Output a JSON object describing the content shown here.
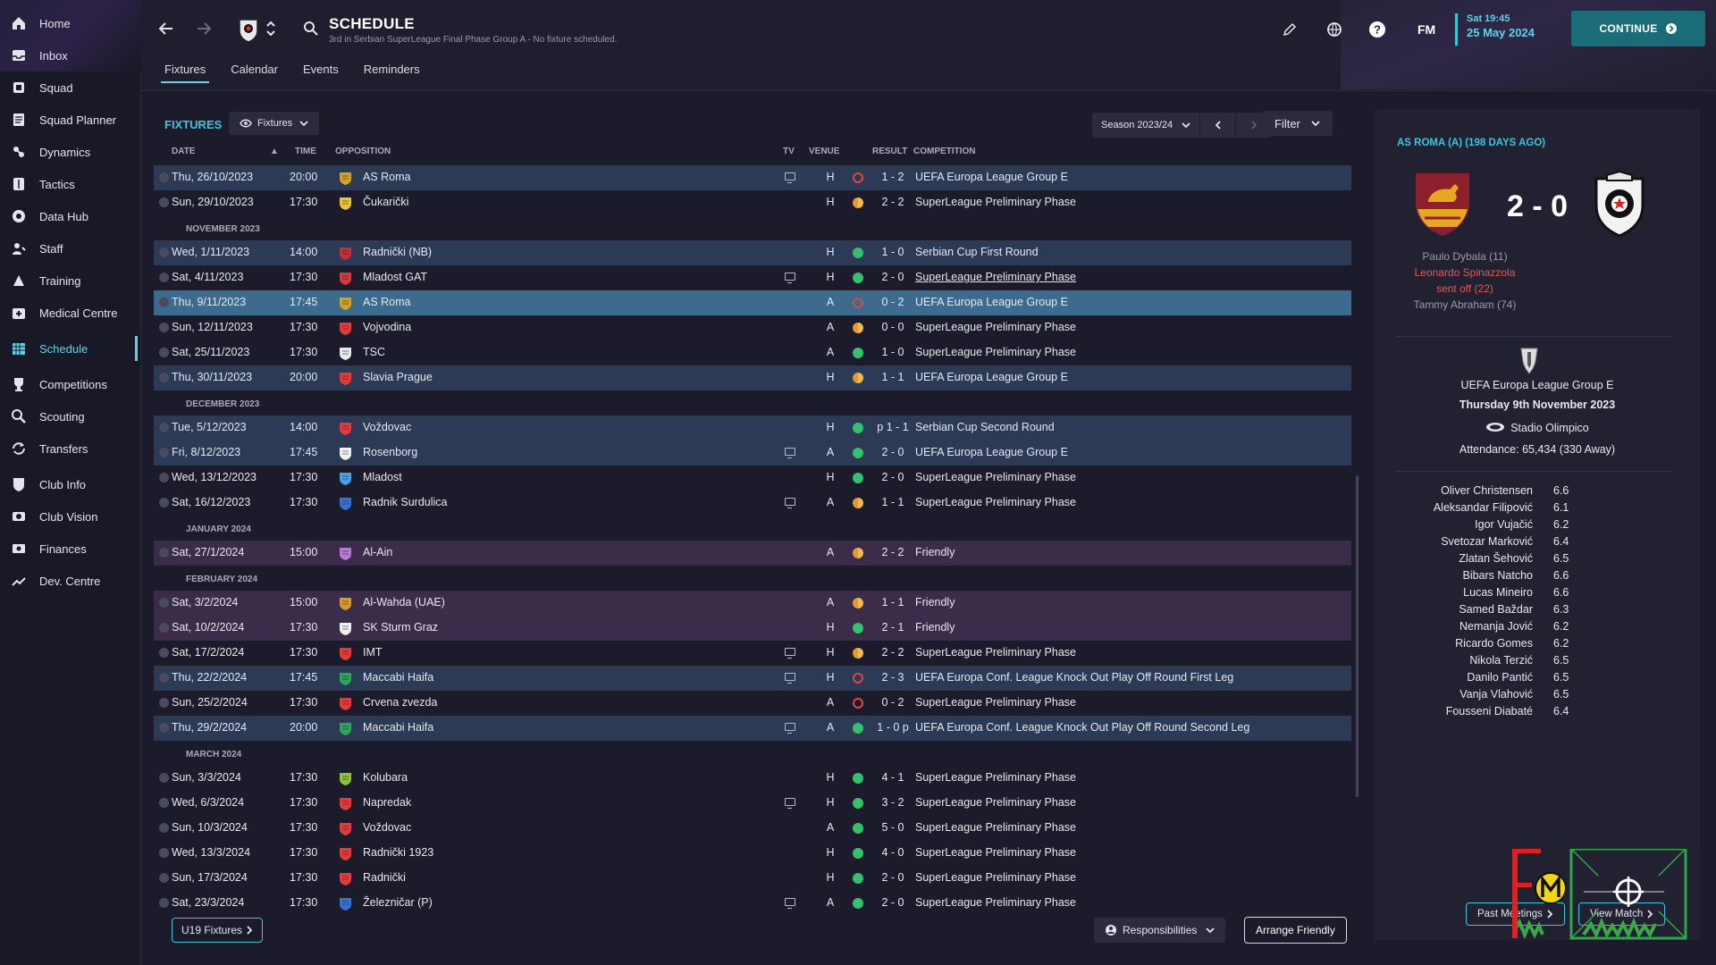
{
  "sidebar": {
    "items": [
      {
        "label": "Home",
        "icon": "home-icon"
      },
      {
        "label": "Inbox",
        "icon": "inbox-icon"
      },
      {
        "label": "Squad",
        "icon": "squad-icon"
      },
      {
        "label": "Squad Planner",
        "icon": "planner-icon"
      },
      {
        "label": "Dynamics",
        "icon": "dynamics-icon"
      },
      {
        "label": "Tactics",
        "icon": "tactics-icon"
      },
      {
        "label": "Data Hub",
        "icon": "datahub-icon"
      },
      {
        "label": "Staff",
        "icon": "staff-icon"
      },
      {
        "label": "Training",
        "icon": "training-icon"
      },
      {
        "label": "Medical Centre",
        "icon": "medical-icon"
      },
      {
        "label": "Schedule",
        "icon": "schedule-icon",
        "active": true
      },
      {
        "label": "Competitions",
        "icon": "trophy-icon"
      },
      {
        "label": "Scouting",
        "icon": "scouting-icon"
      },
      {
        "label": "Transfers",
        "icon": "transfers-icon"
      },
      {
        "label": "Club Info",
        "icon": "clubinfo-icon"
      },
      {
        "label": "Club Vision",
        "icon": "vision-icon"
      },
      {
        "label": "Finances",
        "icon": "finances-icon"
      },
      {
        "label": "Dev. Centre",
        "icon": "devcentre-icon"
      }
    ]
  },
  "header": {
    "title": "SCHEDULE",
    "subtitle": "3rd in Serbian SuperLeague Final Phase Group A - No fixture scheduled.",
    "tabs": [
      "Fixtures",
      "Calendar",
      "Events",
      "Reminders"
    ],
    "fm_label": "FM",
    "time": "Sat 19:45",
    "date": "25 May 2024",
    "continue_label": "CONTINUE",
    "accent": "#5ed3e8"
  },
  "fixtures": {
    "title": "FIXTURES",
    "view_dropdown": "Fixtures",
    "season": "Season 2023/24",
    "filter_label": "Filter",
    "columns": {
      "date": "DATE",
      "time": "TIME",
      "opposition": "OPPOSITION",
      "tv": "TV",
      "venue": "VENUE",
      "result": "RESULT",
      "competition": "COMPETITION"
    },
    "rows": [
      {
        "type": "fixture",
        "date": "Thu, 26/10/2023",
        "time": "20:00",
        "opp": "AS Roma",
        "badge": "#d4a02a",
        "tv": true,
        "venue": "H",
        "outcome": "loss",
        "result": "1 - 2",
        "comp": "UEFA Europa League Group E",
        "tint": "blue"
      },
      {
        "type": "fixture",
        "date": "Sun, 29/10/2023",
        "time": "17:30",
        "opp": "Čukarički",
        "badge": "#e9c33a",
        "tv": false,
        "venue": "H",
        "outcome": "draw",
        "result": "2 - 2",
        "comp": "SuperLeague Preliminary Phase",
        "tint": ""
      },
      {
        "type": "month",
        "label": "NOVEMBER 2023"
      },
      {
        "type": "fixture",
        "date": "Wed, 1/11/2023",
        "time": "14:00",
        "opp": "Radnički (NB)",
        "badge": "#c0303a",
        "tv": false,
        "venue": "H",
        "outcome": "win",
        "result": "1 - 0",
        "comp": "Serbian Cup First Round",
        "tint": "blue"
      },
      {
        "type": "fixture",
        "date": "Sat, 4/11/2023",
        "time": "17:30",
        "opp": "Mladost GAT",
        "badge": "#d33a3a",
        "tv": true,
        "venue": "H",
        "outcome": "win",
        "result": "2 - 0",
        "comp": "SuperLeague Preliminary Phase",
        "tint": "",
        "underline": true
      },
      {
        "type": "fixture",
        "date": "Thu, 9/11/2023",
        "time": "17:45",
        "opp": "AS Roma",
        "badge": "#d4a02a",
        "tv": false,
        "venue": "A",
        "outcome": "loss",
        "result": "0 - 2",
        "comp": "UEFA Europa League Group E",
        "tint": "sel"
      },
      {
        "type": "fixture",
        "date": "Sun, 12/11/2023",
        "time": "17:30",
        "opp": "Vojvodina",
        "badge": "#e03c3c",
        "tv": false,
        "venue": "A",
        "outcome": "draw",
        "result": "0 - 0",
        "comp": "SuperLeague Preliminary Phase",
        "tint": ""
      },
      {
        "type": "fixture",
        "date": "Sat, 25/11/2023",
        "time": "17:30",
        "opp": "TSC",
        "badge": "#e8e8e8",
        "tv": false,
        "venue": "A",
        "outcome": "win",
        "result": "1 - 0",
        "comp": "SuperLeague Preliminary Phase",
        "tint": ""
      },
      {
        "type": "fixture",
        "date": "Thu, 30/11/2023",
        "time": "20:00",
        "opp": "Slavia Prague",
        "badge": "#e03c3c",
        "tv": false,
        "venue": "H",
        "outcome": "draw",
        "result": "1 - 1",
        "comp": "UEFA Europa League Group E",
        "tint": "blue"
      },
      {
        "type": "month",
        "label": "DECEMBER 2023"
      },
      {
        "type": "fixture",
        "date": "Tue, 5/12/2023",
        "time": "14:00",
        "opp": "Voždovac",
        "badge": "#e03c3c",
        "tv": false,
        "venue": "H",
        "outcome": "win",
        "result": "p 1 - 1",
        "comp": "Serbian Cup Second Round",
        "tint": "blue"
      },
      {
        "type": "fixture",
        "date": "Fri, 8/12/2023",
        "time": "17:45",
        "opp": "Rosenborg",
        "badge": "#f0f0f0",
        "tv": true,
        "venue": "A",
        "outcome": "win",
        "result": "2 - 0",
        "comp": "UEFA Europa League Group E",
        "tint": "blue"
      },
      {
        "type": "fixture",
        "date": "Wed, 13/12/2023",
        "time": "17:30",
        "opp": "Mladost",
        "badge": "#4aa0e0",
        "tv": false,
        "venue": "H",
        "outcome": "win",
        "result": "2 - 0",
        "comp": "SuperLeague Preliminary Phase",
        "tint": ""
      },
      {
        "type": "fixture",
        "date": "Sat, 16/12/2023",
        "time": "17:30",
        "opp": "Radnik Surdulica",
        "badge": "#3a6fd0",
        "tv": true,
        "venue": "A",
        "outcome": "draw",
        "result": "1 - 1",
        "comp": "SuperLeague Preliminary Phase",
        "tint": ""
      },
      {
        "type": "month",
        "label": "JANUARY 2024"
      },
      {
        "type": "fixture",
        "date": "Sat, 27/1/2024",
        "time": "15:00",
        "opp": "Al-Ain",
        "badge": "#b77ad8",
        "tv": false,
        "venue": "A",
        "outcome": "draw",
        "result": "2 - 2",
        "comp": "Friendly",
        "tint": "purple"
      },
      {
        "type": "month",
        "label": "FEBRUARY 2024"
      },
      {
        "type": "fixture",
        "date": "Sat, 3/2/2024",
        "time": "15:00",
        "opp": "Al-Wahda (UAE)",
        "badge": "#d79a2a",
        "tv": false,
        "venue": "A",
        "outcome": "draw",
        "result": "1 - 1",
        "comp": "Friendly",
        "tint": "purple"
      },
      {
        "type": "fixture",
        "date": "Sat, 10/2/2024",
        "time": "17:30",
        "opp": "SK Sturm Graz",
        "badge": "#f0f0f0",
        "tv": false,
        "venue": "H",
        "outcome": "win",
        "result": "2 - 1",
        "comp": "Friendly",
        "tint": "purple"
      },
      {
        "type": "fixture",
        "date": "Sat, 17/2/2024",
        "time": "17:30",
        "opp": "IMT",
        "badge": "#e03c3c",
        "tv": true,
        "venue": "H",
        "outcome": "draw",
        "result": "2 - 2",
        "comp": "SuperLeague Preliminary Phase",
        "tint": ""
      },
      {
        "type": "fixture",
        "date": "Thu, 22/2/2024",
        "time": "17:45",
        "opp": "Maccabi Haifa",
        "badge": "#2fa45a",
        "tv": true,
        "venue": "H",
        "outcome": "loss",
        "result": "2 - 3",
        "comp": "UEFA Europa Conf. League Knock Out Play Off Round First Leg",
        "tint": "blue"
      },
      {
        "type": "fixture",
        "date": "Sun, 25/2/2024",
        "time": "17:30",
        "opp": "Crvena zvezda",
        "badge": "#e03c3c",
        "tv": false,
        "venue": "A",
        "outcome": "loss",
        "result": "0 - 2",
        "comp": "SuperLeague Preliminary Phase",
        "tint": ""
      },
      {
        "type": "fixture",
        "date": "Thu, 29/2/2024",
        "time": "20:00",
        "opp": "Maccabi Haifa",
        "badge": "#2fa45a",
        "tv": true,
        "venue": "A",
        "outcome": "win",
        "result": "1 - 0 p",
        "comp": "UEFA Europa Conf. League Knock Out Play Off Round Second Leg",
        "tint": "blue"
      },
      {
        "type": "month",
        "label": "MARCH 2024"
      },
      {
        "type": "fixture",
        "date": "Sun, 3/3/2024",
        "time": "17:30",
        "opp": "Kolubara",
        "badge": "#8fc23a",
        "tv": false,
        "venue": "H",
        "outcome": "win",
        "result": "4 - 1",
        "comp": "SuperLeague Preliminary Phase",
        "tint": ""
      },
      {
        "type": "fixture",
        "date": "Wed, 6/3/2024",
        "time": "17:30",
        "opp": "Napredak",
        "badge": "#e03c3c",
        "tv": true,
        "venue": "H",
        "outcome": "win",
        "result": "3 - 2",
        "comp": "SuperLeague Preliminary Phase",
        "tint": ""
      },
      {
        "type": "fixture",
        "date": "Sun, 10/3/2024",
        "time": "17:30",
        "opp": "Voždovac",
        "badge": "#e03c3c",
        "tv": false,
        "venue": "A",
        "outcome": "win",
        "result": "5 - 0",
        "comp": "SuperLeague Preliminary Phase",
        "tint": ""
      },
      {
        "type": "fixture",
        "date": "Wed, 13/3/2024",
        "time": "17:30",
        "opp": "Radnički 1923",
        "badge": "#e03c3c",
        "tv": false,
        "venue": "H",
        "outcome": "win",
        "result": "4 - 0",
        "comp": "SuperLeague Preliminary Phase",
        "tint": ""
      },
      {
        "type": "fixture",
        "date": "Sun, 17/3/2024",
        "time": "17:30",
        "opp": "Radnički",
        "badge": "#e03c3c",
        "tv": false,
        "venue": "H",
        "outcome": "win",
        "result": "2 - 0",
        "comp": "SuperLeague Preliminary Phase",
        "tint": ""
      },
      {
        "type": "fixture",
        "date": "Sat, 23/3/2024",
        "time": "17:30",
        "opp": "Železničar (P)",
        "badge": "#3a6fd0",
        "tv": true,
        "venue": "A",
        "outcome": "win",
        "result": "2 - 0",
        "comp": "SuperLeague Preliminary Phase",
        "tint": ""
      }
    ],
    "u19_label": "U19 Fixtures",
    "responsibilities_label": "Responsibilities",
    "arrange_label": "Arrange Friendly"
  },
  "match_panel": {
    "header": "AS ROMA (A) (198 DAYS AGO)",
    "score": "2 - 0",
    "scorers": [
      "Paulo Dybala (11)"
    ],
    "red_card": [
      "Leonardo Spinazzola",
      "sent off (22)"
    ],
    "scorers_after": [
      "Tammy Abraham (74)"
    ],
    "competition": "UEFA Europa League Group E",
    "date": "Thursday 9th November 2023",
    "stadium": "Stadio Olimpico",
    "attendance": "Attendance: 65,434 (330 Away)",
    "players": [
      {
        "name": "Oliver Christensen",
        "rating": "6.6"
      },
      {
        "name": "Aleksandar Filipović",
        "rating": "6.1"
      },
      {
        "name": "Igor Vujačić",
        "rating": "6.2"
      },
      {
        "name": "Svetozar Marković",
        "rating": "6.4"
      },
      {
        "name": "Zlatan Šehović",
        "rating": "6.5"
      },
      {
        "name": "Bibars Natcho",
        "rating": "6.6"
      },
      {
        "name": "Lucas Mineiro",
        "rating": "6.6"
      },
      {
        "name": "Samed Baždar",
        "rating": "6.3"
      },
      {
        "name": "Nemanja Jović",
        "rating": "6.2"
      },
      {
        "name": "Ricardo Gomes",
        "rating": "6.2"
      },
      {
        "name": "Nikola Terzić",
        "rating": "6.5"
      },
      {
        "name": "Danilo Pantić",
        "rating": "6.5"
      },
      {
        "name": "Vanja Vlahović",
        "rating": "6.5"
      },
      {
        "name": "Fousseni Diabaté",
        "rating": "6.4"
      }
    ],
    "past_meetings_label": "Past Meetings",
    "view_match_label": "View Match"
  },
  "colors": {
    "win": "#35c06b",
    "draw": "#e69a2b",
    "loss": "#e0473f",
    "accent": "#3fc4dc"
  }
}
